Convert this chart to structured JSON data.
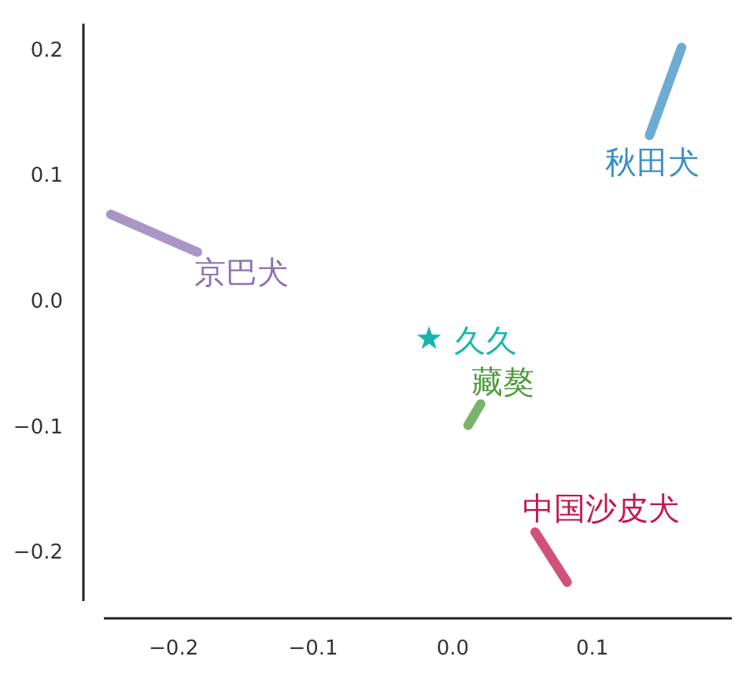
{
  "chart_data": {
    "type": "line",
    "xlim": [
      -0.25,
      0.2
    ],
    "ylim": [
      -0.24,
      0.22
    ],
    "xticks": [
      -0.2,
      -0.1,
      {
        "value": 0,
        "label": "0.0"
      },
      0.1
    ],
    "yticks": [
      -0.2,
      -0.1,
      {
        "value": 0,
        "label": "0.0"
      },
      0.1,
      0.2
    ],
    "grid": false,
    "series": [
      {
        "name": "秋田犬",
        "color": "#3b8fc4",
        "x": [
          0.141,
          0.164
        ],
        "values": [
          0.131,
          0.201
        ]
      },
      {
        "name": "京巴犬",
        "color": "#8e72b4",
        "x": [
          -0.245,
          -0.183
        ],
        "values": [
          0.068,
          0.038
        ]
      },
      {
        "name": "久久",
        "type": "scatter",
        "marker": "star",
        "color": "#17b5ad",
        "x": [
          -0.017
        ],
        "values": [
          -0.031
        ]
      },
      {
        "name": "藏獒",
        "color": "#4f9a3c",
        "x": [
          0.011,
          0.02
        ],
        "values": [
          -0.1,
          -0.083
        ]
      },
      {
        "name": "中国沙皮犬",
        "color": "#c2184c",
        "x": [
          0.059,
          0.082
        ],
        "values": [
          -0.185,
          -0.225
        ]
      }
    ]
  }
}
